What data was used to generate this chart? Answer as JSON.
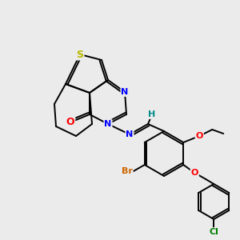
{
  "bg_color": "#ebebeb",
  "atom_colors": {
    "S": "#b8b800",
    "N": "#0000ff",
    "O": "#ff0000",
    "H": "#008b8b",
    "Br": "#cc6600",
    "Cl": "#008000",
    "C": "#000000"
  },
  "bond_color": "#000000",
  "bond_width": 1.4,
  "figsize": [
    3.0,
    3.0
  ],
  "dpi": 100
}
